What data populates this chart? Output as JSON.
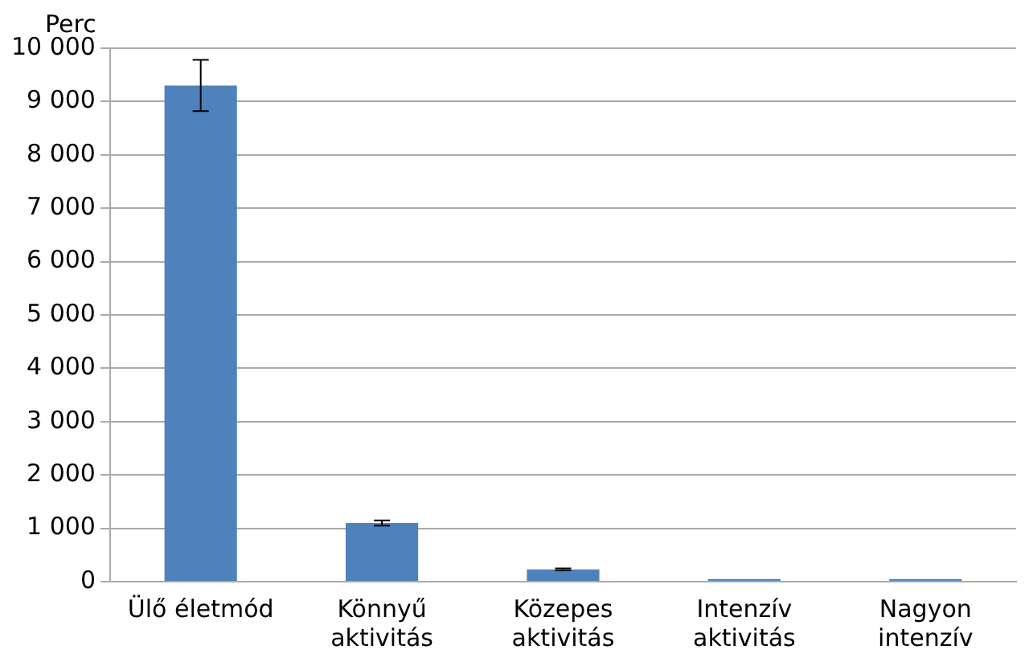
{
  "chart_data": {
    "type": "bar",
    "ylabel": "Perc",
    "categories": [
      "Ülő életmód",
      "Könnyű aktivitás",
      "Közepes aktivitás",
      "Intenzív aktivitás",
      "Nagyon intenzív"
    ],
    "values": [
      9300,
      1100,
      230,
      50,
      50
    ],
    "errors": [
      480,
      50,
      20,
      null,
      null
    ],
    "color": "#4f81bd",
    "ylim": [
      0,
      10000
    ],
    "yticks": [
      0,
      {
        "value": 1000,
        "label": "1 000"
      },
      {
        "value": 2000,
        "label": "2 000"
      },
      {
        "value": 3000,
        "label": "3 000"
      },
      {
        "value": 4000,
        "label": "4 000"
      },
      {
        "value": 5000,
        "label": "5 000"
      },
      {
        "value": 6000,
        "label": "6 000"
      },
      {
        "value": 7000,
        "label": "7 000"
      },
      {
        "value": 8000,
        "label": "8 000"
      },
      {
        "value": 9000,
        "label": "9 000"
      },
      {
        "value": 10000,
        "label": "10 000"
      }
    ],
    "grid": "y"
  }
}
